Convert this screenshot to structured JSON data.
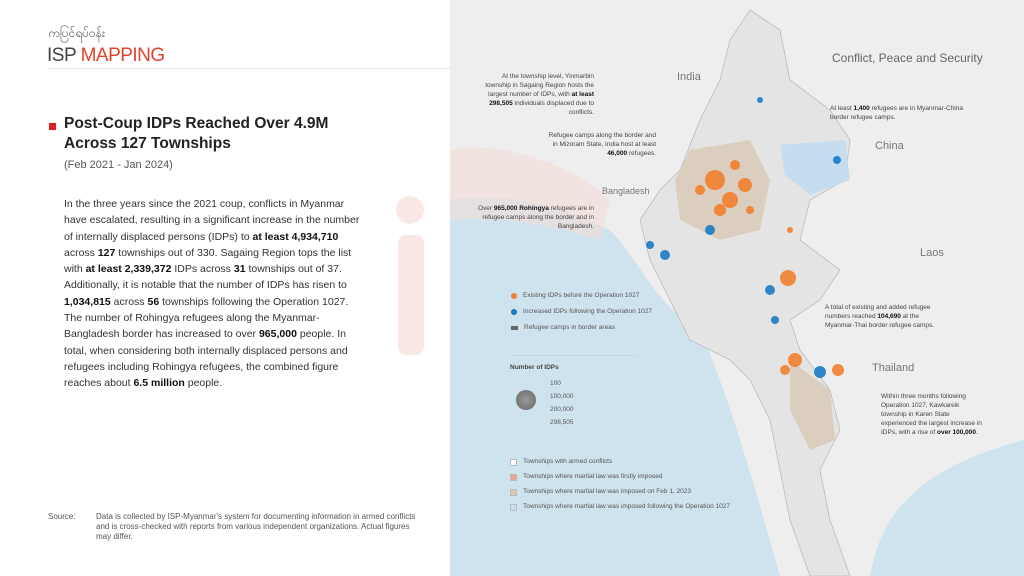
{
  "header": {
    "logo_myanmar": "ကပြင်ရပ်ဝန်း",
    "logo_isp": "ISP",
    "logo_mapping": "MAPPING",
    "section": "Conflict, Peace and Security"
  },
  "article": {
    "title": "Post-Coup IDPs Reached Over 4.9M Across 127 Townships",
    "period": "(Feb 2021 - Jan 2024)",
    "body_segments": [
      {
        "t": "In the three years since the 2021 coup, conflicts in Myanmar have escalated, resulting in a significant increase in the number of internally displaced persons (IDPs) to ",
        "b": false
      },
      {
        "t": "at least 4,934,710",
        "b": true
      },
      {
        "t": " across ",
        "b": false
      },
      {
        "t": "127",
        "b": true
      },
      {
        "t": " townships out of 330. Sagaing Region tops the list with ",
        "b": false
      },
      {
        "t": "at least 2,339,372",
        "b": true
      },
      {
        "t": " IDPs across ",
        "b": false
      },
      {
        "t": "31",
        "b": true
      },
      {
        "t": " townships out of 37. Additionally, it is notable that the number of IDPs has risen to ",
        "b": false
      },
      {
        "t": "1,034,815",
        "b": true
      },
      {
        "t": " across ",
        "b": false
      },
      {
        "t": "56",
        "b": true
      },
      {
        "t": " townships following the Operation 1027. The number of Rohingya refugees along the Myanmar-Bangladesh border has increased to over ",
        "b": false
      },
      {
        "t": "965,000",
        "b": true
      },
      {
        "t": " people. In total, when considering both internally displaced persons and refugees including Rohingya refugees, the combined figure reaches about ",
        "b": false
      },
      {
        "t": "6.5 million",
        "b": true
      },
      {
        "t": " people.",
        "b": false
      }
    ]
  },
  "source": {
    "label": "Source:",
    "text": "Data is collected by ISP-Myanmar's system for documenting information in armed conflicts and is cross-checked with reports from various independent organizations. Actual figures may differ."
  },
  "map": {
    "countries": {
      "india": "India",
      "china": "China",
      "bangladesh": "Bangladesh",
      "laos": "Laos",
      "thailand": "Thailand"
    },
    "annotations": {
      "yinmarbin": {
        "a": "At the township level, Yinmarbin township in Sagaing Region hosts the largest number of IDPs, with ",
        "b": "at least 298,505",
        "c": " individuals displaced due to conflicts."
      },
      "mizoram": {
        "a": "Refugee camps along the border and in Mizoram State, India host at least ",
        "b": "46,000",
        "c": " refugees."
      },
      "rohingya": {
        "a": "Over ",
        "b": "965,000 Rohingya",
        "c": " refugees are in refugee camps along the border and in Bangladesh."
      },
      "china": {
        "a": "At least ",
        "b": "1,400",
        "c": " refugees are in Myanmar-China border refugee camps."
      },
      "thai": {
        "a": "A total of existing and added refugee numbers reached ",
        "b": "104,690",
        "c": " at the Myanmar-Thai border refugee camps."
      },
      "kawkareik": {
        "a": "Within three months following Operation 1027, Kawkareik township in Karen State experienced the largest increase in IDPs, with a rise of ",
        "b": "over 100,000",
        "c": "."
      }
    },
    "legend": {
      "existing": "Existing IDPs before the Operation 1027",
      "increased": "Increased IDPs following the Operation 1027",
      "camps": "Refugee camps in border areas",
      "size_title": "Number of IDPs",
      "sizes": [
        "100",
        "100,000",
        "200,000",
        "298,505"
      ],
      "areas": [
        "Townships with armed conflicts",
        "Townships where martial law was firstly imposed",
        "Townships where martial law was imposed on Feb 1, 2023",
        "Townships where martial law was imposed following the Operation 1027"
      ]
    },
    "colors": {
      "existing": "#f07f2e",
      "increased": "#1a7bc4",
      "martial1": "#f0a394",
      "martial2": "#d9c8b4",
      "martial3": "#c5ddef",
      "sea": "#cfe3ee"
    }
  }
}
